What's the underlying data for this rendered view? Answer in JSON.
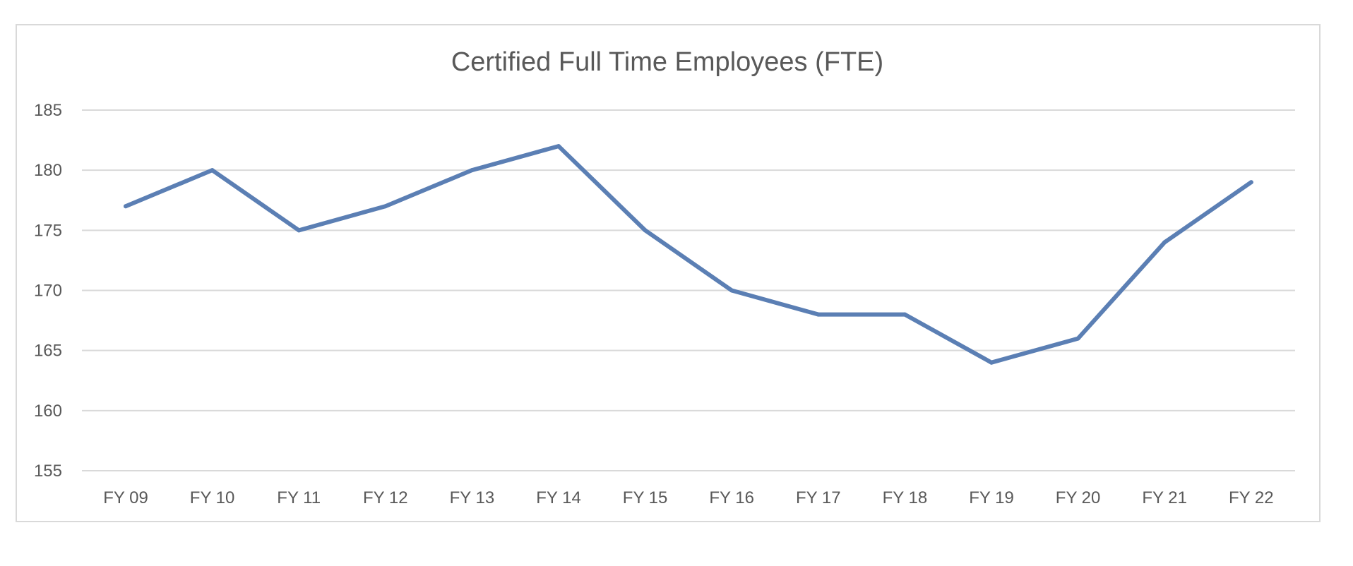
{
  "chart_data": {
    "type": "line",
    "title": "Certified Full Time Employees (FTE)",
    "xlabel": "",
    "ylabel": "",
    "categories": [
      "FY 09",
      "FY 10",
      "FY 11",
      "FY 12",
      "FY 13",
      "FY 14",
      "FY 15",
      "FY 16",
      "FY 17",
      "FY 18",
      "FY 19",
      "FY 20",
      "FY 21",
      "FY 22"
    ],
    "series": [
      {
        "values": [
          177,
          180,
          175,
          177,
          180,
          182,
          175,
          170,
          168,
          168,
          164,
          166,
          174,
          179
        ],
        "color": "#5b7fb4"
      }
    ],
    "ylim": [
      155,
      185
    ],
    "yticks": [
      155,
      160,
      165,
      170,
      175,
      180,
      185
    ],
    "grid": true,
    "legend": "none"
  }
}
